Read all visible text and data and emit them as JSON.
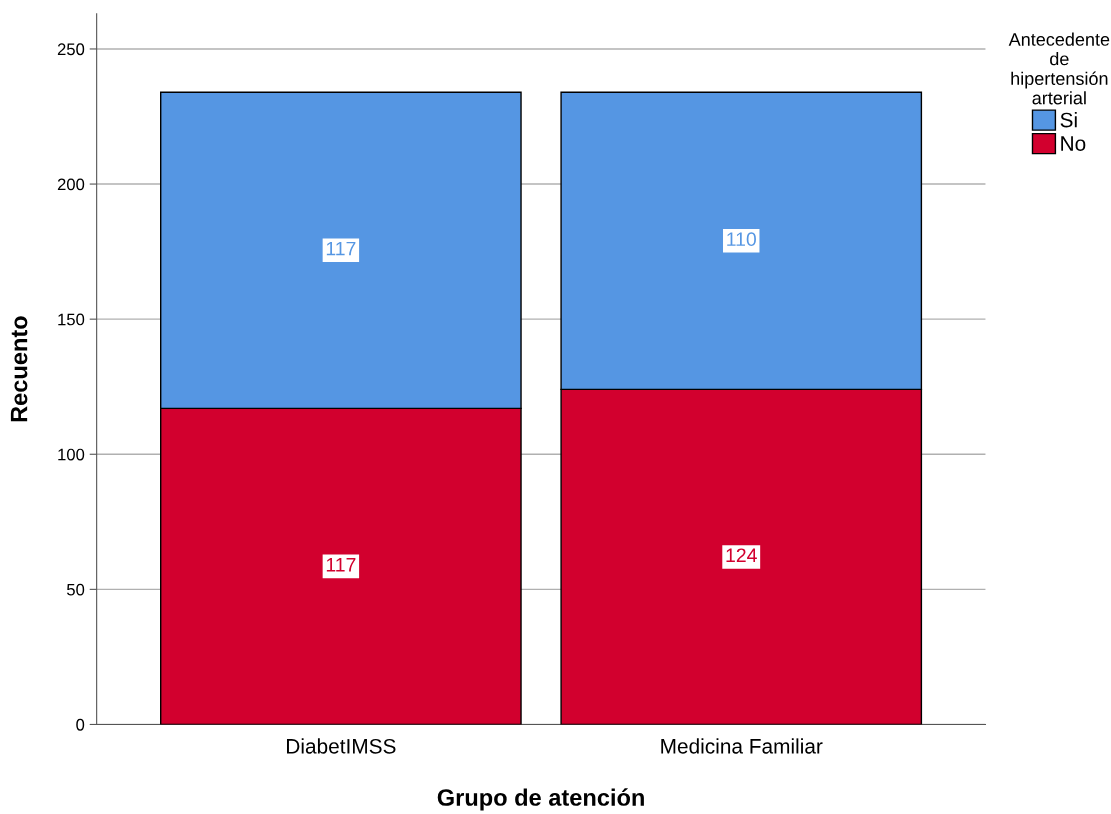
{
  "chart_data": {
    "type": "bar",
    "stacked": true,
    "categories": [
      "DiabetIMSS",
      "Medicina Familiar"
    ],
    "series": [
      {
        "name": "No",
        "color": "#d2002e",
        "values": [
          117,
          124
        ]
      },
      {
        "name": "Si",
        "color": "#5596e3",
        "values": [
          117,
          110
        ]
      }
    ],
    "xlabel": "Grupo de atención",
    "ylabel": "Recuento",
    "legend_title": "Antecedente\nde\nhipertensión\narterial",
    "ylim": [
      0,
      263
    ],
    "yticks": [
      0,
      50,
      100,
      150,
      200,
      250
    ],
    "grid": "y",
    "legend": "top right",
    "data_labels": true
  }
}
